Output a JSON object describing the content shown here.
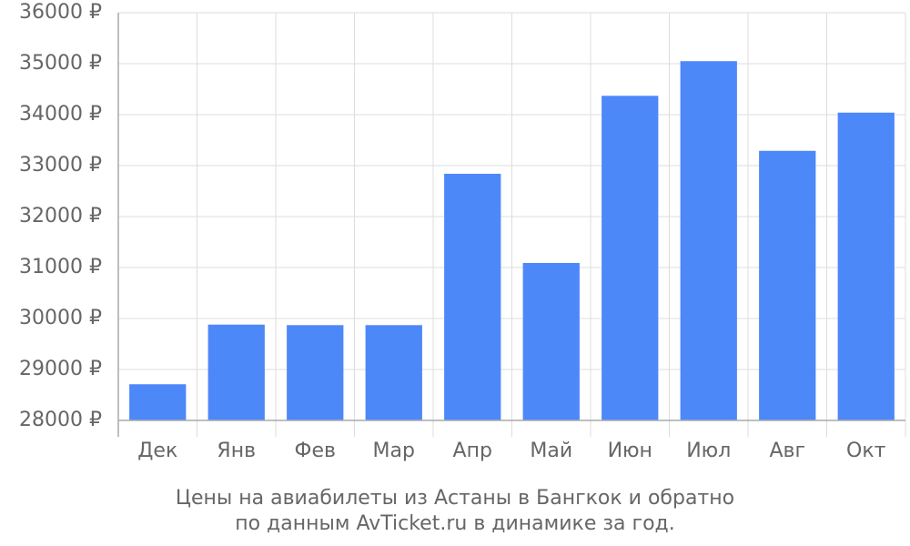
{
  "chart_data": {
    "type": "bar",
    "caption": [
      "Цены на авиабилеты из Астаны в Бангкок и обратно",
      "по данным AvTicket.ru в динамике за год."
    ],
    "categories": [
      "Дек",
      "Янв",
      "Фев",
      "Мар",
      "Апр",
      "Май",
      "Июн",
      "Июл",
      "Авг",
      "Окт"
    ],
    "values": [
      28710,
      29880,
      29870,
      29870,
      32840,
      31090,
      34370,
      35050,
      33290,
      34040
    ],
    "color": "#4d88f9",
    "ylim": [
      28000,
      36000
    ],
    "yticks": [
      {
        "value": 28000,
        "label": "28000 ₽"
      },
      {
        "value": 29000,
        "label": "29000 ₽"
      },
      {
        "value": 30000,
        "label": "30000 ₽"
      },
      {
        "value": 31000,
        "label": "31000 ₽"
      },
      {
        "value": 32000,
        "label": "32000 ₽"
      },
      {
        "value": 33000,
        "label": "33000 ₽"
      },
      {
        "value": 34000,
        "label": "34000 ₽"
      },
      {
        "value": 35000,
        "label": "35000 ₽"
      },
      {
        "value": 36000,
        "label": "36000 ₽"
      }
    ],
    "grid": true
  }
}
